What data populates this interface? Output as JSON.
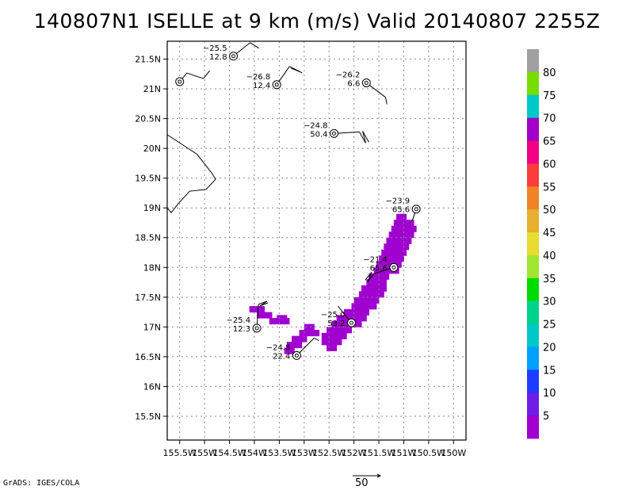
{
  "title": "140807N1 ISELLE at 9 km (m/s) Valid 20140807 2255Z",
  "credit": "GrADS: IGES/COLA",
  "vector_scale_label": "50",
  "chart_data": {
    "type": "map",
    "title": "140807N1 ISELLE at 9 km (m/s) Valid 20140807 2255Z",
    "xlim": [
      -155.75,
      -149.75
    ],
    "ylim": [
      15.1,
      21.8
    ],
    "x_ticks": [
      {
        "v": -155.5,
        "label": "155.5W"
      },
      {
        "v": -155.0,
        "label": "155W"
      },
      {
        "v": -154.5,
        "label": "154.5W"
      },
      {
        "v": -154.0,
        "label": "154W"
      },
      {
        "v": -153.5,
        "label": "153.5W"
      },
      {
        "v": -153.0,
        "label": "153W"
      },
      {
        "v": -152.5,
        "label": "152.5W"
      },
      {
        "v": -152.0,
        "label": "152W"
      },
      {
        "v": -151.5,
        "label": "151.5W"
      },
      {
        "v": -151.0,
        "label": "151W"
      },
      {
        "v": -150.5,
        "label": "150.5W"
      },
      {
        "v": -150.0,
        "label": "150W"
      }
    ],
    "y_ticks": [
      {
        "v": 15.5,
        "label": "15.5N"
      },
      {
        "v": 16.0,
        "label": "16N"
      },
      {
        "v": 16.5,
        "label": "16.5N"
      },
      {
        "v": 17.0,
        "label": "17N"
      },
      {
        "v": 17.5,
        "label": "17.5N"
      },
      {
        "v": 18.0,
        "label": "18N"
      },
      {
        "v": 18.5,
        "label": "18.5N"
      },
      {
        "v": 19.0,
        "label": "19N"
      },
      {
        "v": 19.5,
        "label": "19.5N"
      },
      {
        "v": 20.0,
        "label": "20N"
      },
      {
        "v": 20.5,
        "label": "20.5N"
      },
      {
        "v": 21.0,
        "label": "21N"
      },
      {
        "v": 21.5,
        "label": "21.5N"
      }
    ],
    "grid": true,
    "colorbar": {
      "labels": [
        "5",
        "10",
        "15",
        "20",
        "25",
        "30",
        "35",
        "40",
        "45",
        "50",
        "55",
        "60",
        "65",
        "70",
        "75",
        "80"
      ],
      "colors": [
        "#a000d0",
        "#6e1ee6",
        "#1e3cff",
        "#00a0ff",
        "#00c8c8",
        "#00d28c",
        "#00dc00",
        "#a0e632",
        "#e6dc32",
        "#e6af2d",
        "#f08228",
        "#fa3c3c",
        "#f00082",
        "#a000c8",
        "#00c8c8",
        "#78dc00",
        "#a0a0a0"
      ]
    },
    "stations": [
      {
        "lon": -155.5,
        "lat": 21.12,
        "temp": "",
        "speed": "",
        "barb": [
          [
            9,
            -11
          ],
          [
            30,
            -4
          ],
          [
            38,
            -14
          ]
        ]
      },
      {
        "lon": -154.42,
        "lat": 21.55,
        "temp": "−25.5",
        "speed": "12.8",
        "barb": [
          [
            21,
            -17
          ],
          [
            32,
            -10
          ]
        ]
      },
      {
        "lon": -153.55,
        "lat": 21.07,
        "temp": "−26.8",
        "speed": "12.4",
        "barb": [
          [
            16,
            -23
          ],
          [
            30,
            -16
          ],
          [
            18,
            -21
          ],
          [
            32,
            -15
          ]
        ]
      },
      {
        "lon": -151.75,
        "lat": 21.1,
        "temp": "−26.2",
        "speed": "6.6",
        "barb": [
          [
            24,
            18
          ],
          [
            26,
            27
          ]
        ]
      },
      {
        "lon": -152.4,
        "lat": 20.25,
        "temp": "−24.8",
        "speed": "50.4",
        "barb": [
          [
            32,
            -2
          ],
          [
            40,
            12
          ],
          [
            36,
            -3
          ],
          [
            44,
            11
          ]
        ]
      },
      {
        "lon": -150.75,
        "lat": 18.98,
        "temp": "−23.9",
        "speed": "65.6",
        "barb": [
          [
            -5,
            15
          ]
        ]
      },
      {
        "lon": -151.2,
        "lat": 18.0,
        "temp": "−21.4",
        "speed": "65.6",
        "barb": [
          [
            -25,
            8
          ],
          [
            -33,
            18
          ],
          [
            -28,
            6
          ],
          [
            -36,
            16
          ]
        ]
      },
      {
        "lon": -152.05,
        "lat": 17.07,
        "temp": "−25.0",
        "speed": "53.2",
        "barb": [
          [
            -10,
            -12
          ],
          [
            -17,
            -21
          ]
        ]
      },
      {
        "lon": -153.95,
        "lat": 16.98,
        "temp": "−25.4",
        "speed": "12.3",
        "barb": [
          [
            2,
            -30
          ],
          [
            13,
            -34
          ],
          [
            4,
            -28
          ],
          [
            14,
            -32
          ]
        ]
      },
      {
        "lon": -153.15,
        "lat": 16.52,
        "temp": "−24.8",
        "speed": "22.4",
        "barb": [
          [
            22,
            -22
          ],
          [
            28,
            -19
          ]
        ]
      }
    ],
    "coastline": [
      [
        -155.75,
        20.23
      ],
      [
        -155.15,
        19.9
      ],
      [
        -154.85,
        19.58
      ],
      [
        -154.78,
        19.48
      ],
      [
        -154.97,
        19.31
      ],
      [
        -155.3,
        19.28
      ],
      [
        -155.52,
        19.08
      ],
      [
        -155.67,
        18.92
      ],
      [
        -155.75,
        19.0
      ]
    ],
    "wind_cells": [
      [
        -151.1,
        18.85
      ],
      [
        -151.0,
        18.85
      ],
      [
        -151.15,
        18.75
      ],
      [
        -151.05,
        18.75
      ],
      [
        -150.95,
        18.75
      ],
      [
        -150.85,
        18.75
      ],
      [
        -151.2,
        18.65
      ],
      [
        -151.1,
        18.65
      ],
      [
        -151.0,
        18.65
      ],
      [
        -150.9,
        18.65
      ],
      [
        -150.8,
        18.65
      ],
      [
        -151.25,
        18.55
      ],
      [
        -151.15,
        18.55
      ],
      [
        -151.05,
        18.55
      ],
      [
        -150.95,
        18.55
      ],
      [
        -150.85,
        18.55
      ],
      [
        -151.3,
        18.45
      ],
      [
        -151.2,
        18.45
      ],
      [
        -151.1,
        18.45
      ],
      [
        -151.0,
        18.45
      ],
      [
        -150.9,
        18.45
      ],
      [
        -151.35,
        18.35
      ],
      [
        -151.25,
        18.35
      ],
      [
        -151.15,
        18.35
      ],
      [
        -151.05,
        18.35
      ],
      [
        -150.95,
        18.35
      ],
      [
        -151.4,
        18.25
      ],
      [
        -151.3,
        18.25
      ],
      [
        -151.2,
        18.25
      ],
      [
        -151.1,
        18.25
      ],
      [
        -151.0,
        18.25
      ],
      [
        -151.45,
        18.15
      ],
      [
        -151.35,
        18.15
      ],
      [
        -151.25,
        18.15
      ],
      [
        -151.15,
        18.15
      ],
      [
        -151.05,
        18.15
      ],
      [
        -151.5,
        18.05
      ],
      [
        -151.4,
        18.05
      ],
      [
        -151.3,
        18.05
      ],
      [
        -151.2,
        18.05
      ],
      [
        -151.1,
        18.05
      ],
      [
        -151.55,
        17.95
      ],
      [
        -151.45,
        17.95
      ],
      [
        -151.35,
        17.95
      ],
      [
        -151.25,
        17.95
      ],
      [
        -151.15,
        17.95
      ],
      [
        -151.65,
        17.85
      ],
      [
        -151.55,
        17.85
      ],
      [
        -151.45,
        17.85
      ],
      [
        -151.35,
        17.85
      ],
      [
        -151.7,
        17.75
      ],
      [
        -151.6,
        17.75
      ],
      [
        -151.5,
        17.75
      ],
      [
        -151.4,
        17.75
      ],
      [
        -151.8,
        17.65
      ],
      [
        -151.7,
        17.65
      ],
      [
        -151.6,
        17.65
      ],
      [
        -151.5,
        17.65
      ],
      [
        -151.4,
        17.65
      ],
      [
        -151.85,
        17.55
      ],
      [
        -151.75,
        17.55
      ],
      [
        -151.65,
        17.55
      ],
      [
        -151.55,
        17.55
      ],
      [
        -151.45,
        17.55
      ],
      [
        -151.95,
        17.45
      ],
      [
        -151.85,
        17.45
      ],
      [
        -151.75,
        17.45
      ],
      [
        -151.65,
        17.45
      ],
      [
        -151.55,
        17.45
      ],
      [
        -152.0,
        17.35
      ],
      [
        -151.9,
        17.35
      ],
      [
        -151.8,
        17.35
      ],
      [
        -151.7,
        17.35
      ],
      [
        -151.6,
        17.35
      ],
      [
        -152.15,
        17.25
      ],
      [
        -152.05,
        17.25
      ],
      [
        -151.95,
        17.25
      ],
      [
        -151.85,
        17.25
      ],
      [
        -151.75,
        17.25
      ],
      [
        -152.3,
        17.15
      ],
      [
        -152.2,
        17.15
      ],
      [
        -152.1,
        17.15
      ],
      [
        -152.0,
        17.15
      ],
      [
        -151.9,
        17.15
      ],
      [
        -151.8,
        17.15
      ],
      [
        -152.4,
        17.05
      ],
      [
        -152.3,
        17.05
      ],
      [
        -152.2,
        17.05
      ],
      [
        -152.1,
        17.05
      ],
      [
        -152.0,
        17.05
      ],
      [
        -151.9,
        17.05
      ],
      [
        -152.5,
        16.95
      ],
      [
        -152.4,
        16.95
      ],
      [
        -152.3,
        16.95
      ],
      [
        -152.2,
        16.95
      ],
      [
        -152.1,
        16.95
      ],
      [
        -152.6,
        16.85
      ],
      [
        -152.5,
        16.85
      ],
      [
        -152.4,
        16.85
      ],
      [
        -152.3,
        16.85
      ],
      [
        -152.2,
        16.85
      ],
      [
        -152.6,
        16.75
      ],
      [
        -152.5,
        16.75
      ],
      [
        -152.4,
        16.75
      ],
      [
        -152.3,
        16.75
      ],
      [
        -152.5,
        16.65
      ],
      [
        -152.4,
        16.65
      ],
      [
        -152.95,
        17.0
      ],
      [
        -152.85,
        17.0
      ],
      [
        -153.05,
        16.9
      ],
      [
        -152.95,
        16.9
      ],
      [
        -152.85,
        16.9
      ],
      [
        -152.75,
        16.9
      ],
      [
        -153.2,
        16.8
      ],
      [
        -153.1,
        16.8
      ],
      [
        -153.0,
        16.8
      ],
      [
        -153.3,
        16.7
      ],
      [
        -153.2,
        16.7
      ],
      [
        -153.1,
        16.7
      ],
      [
        -153.35,
        16.6
      ],
      [
        -153.25,
        16.6
      ],
      [
        -153.5,
        17.15
      ],
      [
        -153.4,
        17.15
      ],
      [
        -153.65,
        17.1
      ],
      [
        -153.55,
        17.1
      ],
      [
        -153.45,
        17.1
      ],
      [
        -153.35,
        17.1
      ],
      [
        -153.9,
        17.2
      ],
      [
        -153.8,
        17.2
      ],
      [
        -153.7,
        17.2
      ],
      [
        -153.95,
        17.3
      ],
      [
        -153.85,
        17.3
      ],
      [
        -154.05,
        17.3
      ]
    ]
  }
}
